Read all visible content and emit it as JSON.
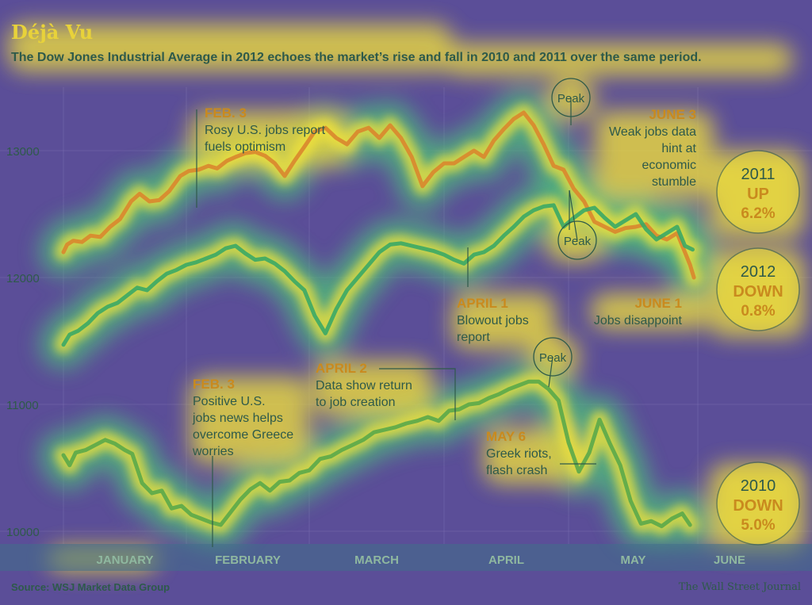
{
  "title": "Déjà Vu",
  "subtitle": "The Dow Jones Industrial Average in 2012 echoes the market’s rise and fall in 2010 and 2011 over the same period.",
  "source": "Source: WSJ Market Data Group",
  "credit": "The Wall Street Journal",
  "colors": {
    "background": "#5b4e98",
    "heat_yellow": "#f2e23a",
    "heat_green": "#4fbf7a",
    "line_2011": "#d9862e",
    "line_2012": "#3aa866",
    "line_2010": "#5aa84a",
    "label_text": "#2e5a4a",
    "label_heading": "#c98a1e"
  },
  "chart_data": {
    "type": "line",
    "title": "Déjà Vu",
    "subtitle": "The Dow Jones Industrial Average in 2012 echoes the market’s rise and fall in 2010 and 2011 over the same period.",
    "xlabel": "",
    "ylabel": "",
    "categories": [
      "JANUARY",
      "FEBRUARY",
      "MARCH",
      "APRIL",
      "MAY",
      "JUNE"
    ],
    "y_ticks": [
      10000,
      11000,
      12000,
      13000
    ],
    "ylim": [
      9900,
      13300
    ],
    "xlim": [
      0,
      5.1
    ],
    "grid": true,
    "series": [
      {
        "name": "2011",
        "x": [
          0.0,
          0.03,
          0.08,
          0.15,
          0.22,
          0.3,
          0.38,
          0.46,
          0.55,
          0.62,
          0.7,
          0.78,
          0.86,
          0.95,
          1.02,
          1.1,
          1.18,
          1.25,
          1.33,
          1.4,
          1.48,
          1.56,
          1.64,
          1.72,
          1.8,
          1.88,
          1.96,
          2.04,
          2.12,
          2.2,
          2.28,
          2.36,
          2.44,
          2.52,
          2.6,
          2.68,
          2.76,
          2.84,
          2.92,
          3.0,
          3.08,
          3.16,
          3.24,
          3.32,
          3.4,
          3.48,
          3.56,
          3.64,
          3.72,
          3.8,
          3.88,
          3.96,
          4.04,
          4.12,
          4.2,
          4.28,
          4.36,
          4.44,
          4.52,
          4.6,
          4.68,
          4.76,
          4.84,
          4.9,
          4.94,
          4.97
        ],
        "values": [
          12200,
          12260,
          12290,
          12280,
          12330,
          12320,
          12400,
          12460,
          12600,
          12660,
          12600,
          12610,
          12680,
          12800,
          12840,
          12850,
          12880,
          12860,
          12920,
          12950,
          12980,
          12990,
          12960,
          12900,
          12800,
          12920,
          13030,
          13150,
          13180,
          13100,
          13050,
          13150,
          13180,
          13100,
          13200,
          13100,
          12950,
          12720,
          12830,
          12900,
          12900,
          12950,
          13000,
          12950,
          13080,
          13170,
          13250,
          13300,
          13200,
          13050,
          12880,
          12850,
          12700,
          12600,
          12440,
          12400,
          12360,
          12390,
          12400,
          12420,
          12330,
          12300,
          12350,
          12200,
          12100,
          12000
        ]
      },
      {
        "name": "2012",
        "x": [
          0.0,
          0.05,
          0.12,
          0.2,
          0.28,
          0.36,
          0.44,
          0.52,
          0.6,
          0.68,
          0.76,
          0.84,
          0.92,
          1.0,
          1.08,
          1.16,
          1.24,
          1.32,
          1.4,
          1.48,
          1.56,
          1.64,
          1.72,
          1.8,
          1.88,
          1.96,
          2.04,
          2.12,
          2.2,
          2.28,
          2.36,
          2.44,
          2.52,
          2.6,
          2.68,
          2.76,
          2.84,
          2.92,
          3.0,
          3.08,
          3.16,
          3.24,
          3.32,
          3.4,
          3.48,
          3.56,
          3.64,
          3.72,
          3.8,
          3.88,
          3.96,
          4.04,
          4.12,
          4.2,
          4.28,
          4.36,
          4.44,
          4.52,
          4.6,
          4.68,
          4.76,
          4.84,
          4.9,
          4.96
        ],
        "values": [
          11470,
          11550,
          11580,
          11640,
          11720,
          11770,
          11800,
          11860,
          11920,
          11900,
          11970,
          12030,
          12060,
          12100,
          12120,
          12150,
          12180,
          12230,
          12250,
          12190,
          12140,
          12150,
          12110,
          12050,
          11970,
          11900,
          11700,
          11560,
          11750,
          11900,
          12000,
          12100,
          12200,
          12260,
          12270,
          12250,
          12230,
          12210,
          12180,
          12140,
          12110,
          12180,
          12200,
          12250,
          12330,
          12400,
          12480,
          12530,
          12560,
          12570,
          12400,
          12470,
          12530,
          12550,
          12470,
          12400,
          12450,
          12500,
          12380,
          12300,
          12350,
          12400,
          12250,
          12220
        ]
      },
      {
        "name": "2010",
        "x": [
          0.0,
          0.05,
          0.1,
          0.18,
          0.26,
          0.34,
          0.42,
          0.5,
          0.56,
          0.64,
          0.72,
          0.8,
          0.88,
          0.96,
          1.04,
          1.12,
          1.2,
          1.28,
          1.36,
          1.44,
          1.52,
          1.6,
          1.68,
          1.76,
          1.84,
          1.92,
          2.0,
          2.08,
          2.16,
          2.24,
          2.32,
          2.4,
          2.48,
          2.56,
          2.64,
          2.72,
          2.8,
          2.88,
          2.96,
          3.04,
          3.12,
          3.2,
          3.28,
          3.36,
          3.44,
          3.52,
          3.6,
          3.68,
          3.76,
          3.84,
          3.92,
          4.0,
          4.08,
          4.16,
          4.24,
          4.32,
          4.4,
          4.48,
          4.56,
          4.64,
          4.72,
          4.8,
          4.88,
          4.94
        ],
        "values": [
          10600,
          10520,
          10620,
          10640,
          10680,
          10720,
          10690,
          10640,
          10610,
          10380,
          10300,
          10320,
          10180,
          10200,
          10130,
          10100,
          10070,
          10050,
          10150,
          10250,
          10330,
          10380,
          10320,
          10390,
          10400,
          10460,
          10480,
          10570,
          10590,
          10640,
          10680,
          10720,
          10780,
          10800,
          10820,
          10850,
          10870,
          10900,
          10870,
          10950,
          10960,
          11000,
          11010,
          11050,
          11080,
          11120,
          11150,
          11180,
          11180,
          11120,
          11030,
          10700,
          10470,
          10620,
          10880,
          10690,
          10520,
          10240,
          10060,
          10080,
          10040,
          10100,
          10140,
          10050
        ]
      }
    ],
    "annotations": [
      {
        "heading": "FEB. 3",
        "text": [
          "Rosy U.S. jobs report",
          "fuels optimism"
        ]
      },
      {
        "heading": "JUNE 3",
        "text": [
          "Weak jobs data",
          "hint at",
          "economic",
          "stumble"
        ]
      },
      {
        "heading": "APRIL 1",
        "text": [
          "Blowout jobs",
          "report"
        ]
      },
      {
        "heading": "JUNE 1",
        "text": [
          "Jobs disappoint"
        ]
      },
      {
        "heading": "APRIL 2",
        "text": [
          "Data show return",
          "to job creation"
        ]
      },
      {
        "heading": "FEB. 3",
        "text": [
          "Positive U.S.",
          "jobs news helps",
          "overcome Greece",
          "worries"
        ]
      },
      {
        "heading": "MAY 6",
        "text": [
          "Greek riots,",
          "flash crash"
        ]
      }
    ],
    "peak_label": "Peak",
    "badges": [
      {
        "year": "2011",
        "direction": "UP",
        "change": "6.2%"
      },
      {
        "year": "2012",
        "direction": "DOWN",
        "change": "0.8%"
      },
      {
        "year": "2010",
        "direction": "DOWN",
        "change": "5.0%"
      }
    ]
  }
}
